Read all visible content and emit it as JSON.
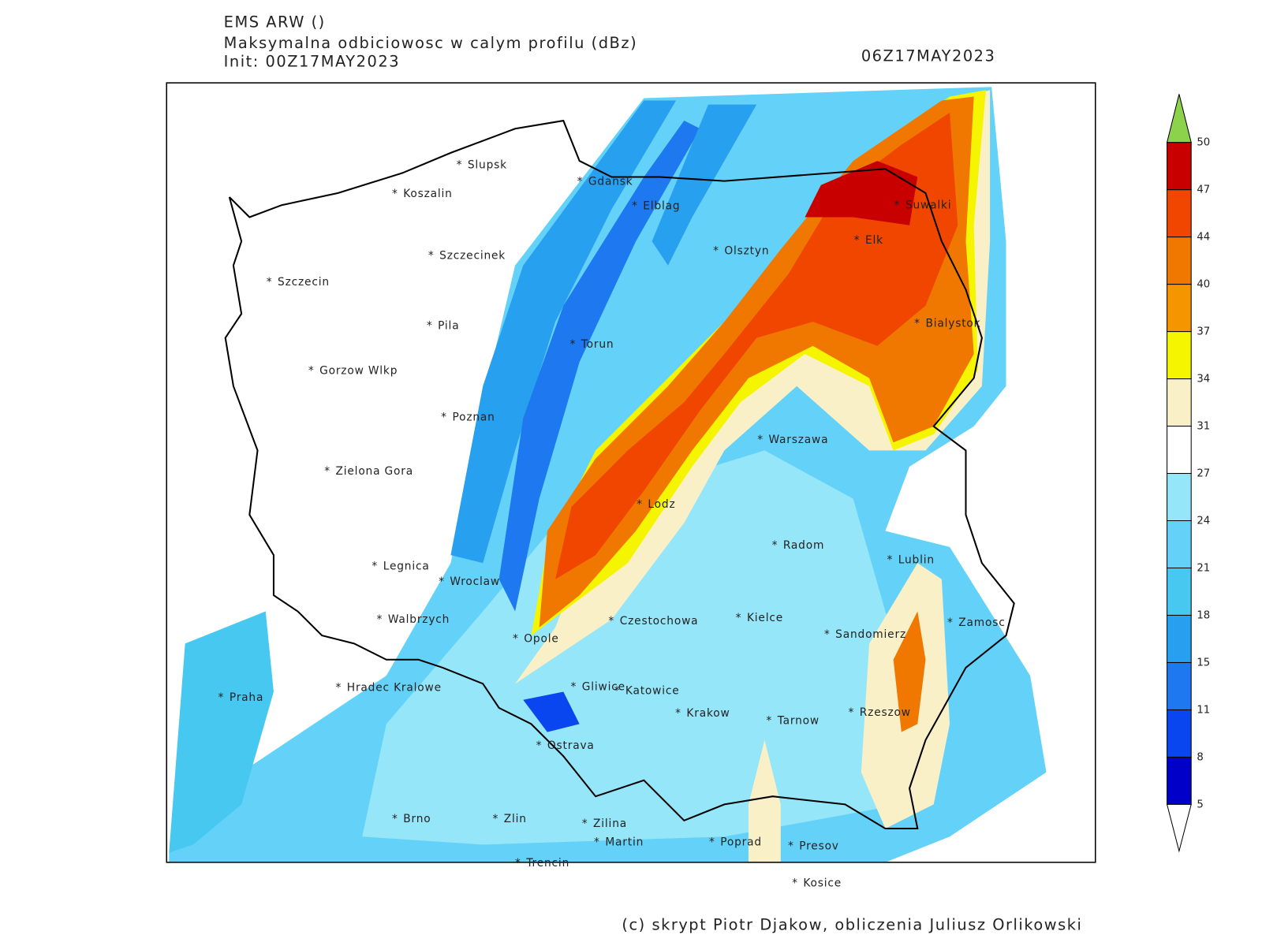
{
  "header": {
    "model": "EMS ARW ()",
    "product": "Maksymalna odbiciowosc w calym profilu (dBz)",
    "init": "Init: 00Z17MAY2023",
    "valid_time": "06Z17MAY2023"
  },
  "cities": [
    "Slupsk",
    "Koszalin",
    "Gdansk",
    "Elblag",
    "Szczecinek",
    "Szczecin",
    "Olsztyn",
    "Suwalki",
    "Elk",
    "Bialystok",
    "Pila",
    "Torun",
    "Gorzow Wlkp",
    "Poznan",
    "Warszawa",
    "Zielona Gora",
    "Lodz",
    "Radom",
    "Lublin",
    "Legnica",
    "Wroclaw",
    "Walbrzych",
    "Czestochowa",
    "Kielce",
    "Zamosc",
    "Sandomierz",
    "Opole",
    "Praha",
    "Hradec Kralowe",
    "Gliwice",
    "Katowice",
    "Krakow",
    "Tarnow",
    "Rzeszow",
    "Ostrava",
    "Brno",
    "Zlin",
    "Zilina",
    "Martin",
    "Poprad",
    "Presov",
    "Trencin",
    "Kosice"
  ],
  "colorbar": {
    "levels": [
      5,
      8,
      11,
      15,
      18,
      21,
      24,
      27,
      31,
      34,
      37,
      40,
      44,
      47,
      50
    ],
    "colors": [
      "#0000c8",
      "#0a46f0",
      "#1e78f0",
      "#28a0f0",
      "#46c8f0",
      "#64d2f8",
      "#96e6fa",
      "#ffffff",
      "#faf0c8",
      "#f5f500",
      "#f59600",
      "#f07800",
      "#f04600",
      "#c80000"
    ],
    "under_color": "#ffffff",
    "over_color": "#8cd24a"
  },
  "credit": "(c) skrypt Piotr Djakow, obliczenia Juliusz Orlikowski"
}
